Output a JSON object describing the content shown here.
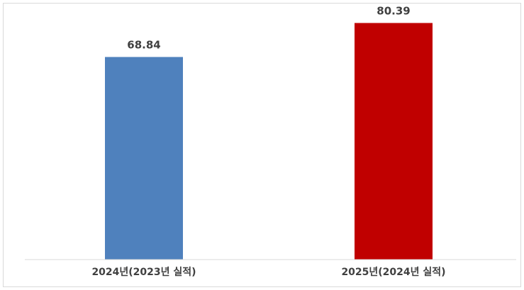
{
  "chart_data": {
    "type": "bar",
    "categories": [
      "2024년(2023년 실적)",
      "2025년(2024년 실적)"
    ],
    "values": [
      68.84,
      80.39
    ],
    "value_labels": [
      "68.84",
      "80.39"
    ],
    "bar_colors": [
      "#4f81bd",
      "#c00000"
    ],
    "title": "",
    "xlabel": "",
    "ylabel": "",
    "ylim": [
      0,
      87
    ],
    "grid": false,
    "legend": "none"
  }
}
